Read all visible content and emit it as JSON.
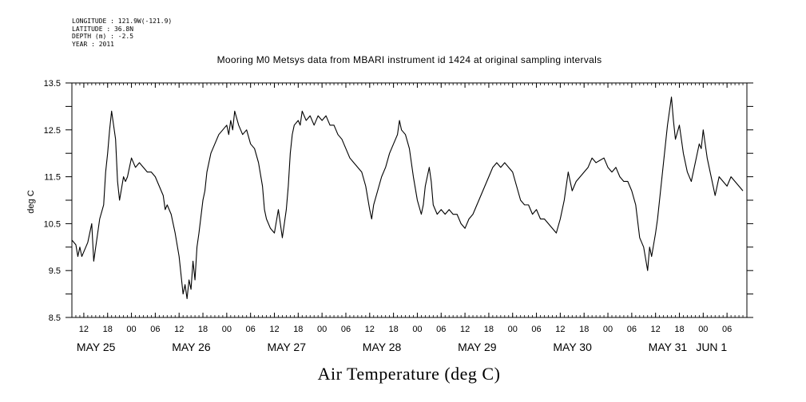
{
  "header": {
    "lines": [
      "LONGITUDE : 121.9W(-121.9)",
      "LATITUDE : 36.8N",
      "DEPTH (m) : -2.5",
      "YEAR : 2011"
    ]
  },
  "chart_data": {
    "type": "line",
    "title": "Mooring M0 Metsys data from MBARI instrument id 1424 at original sampling intervals",
    "xlabel": "Air Temperature (deg C)",
    "ylabel": "deg C",
    "ylim": [
      8.5,
      13.5
    ],
    "yticks": [
      "8.5",
      "9.5",
      "10.5",
      "11.5",
      "12.5",
      "13.5"
    ],
    "x_unit": "hours since May 25 00:00",
    "xlim": [
      9,
      179
    ],
    "hour_ticks": [
      {
        "h": 12,
        "label": "12"
      },
      {
        "h": 18,
        "label": "18"
      },
      {
        "h": 24,
        "label": "00"
      },
      {
        "h": 30,
        "label": "06"
      },
      {
        "h": 36,
        "label": "12"
      },
      {
        "h": 42,
        "label": "18"
      },
      {
        "h": 48,
        "label": "00"
      },
      {
        "h": 54,
        "label": "06"
      },
      {
        "h": 60,
        "label": "12"
      },
      {
        "h": 66,
        "label": "18"
      },
      {
        "h": 72,
        "label": "00"
      },
      {
        "h": 78,
        "label": "06"
      },
      {
        "h": 84,
        "label": "12"
      },
      {
        "h": 90,
        "label": "18"
      },
      {
        "h": 96,
        "label": "00"
      },
      {
        "h": 102,
        "label": "06"
      },
      {
        "h": 108,
        "label": "12"
      },
      {
        "h": 114,
        "label": "18"
      },
      {
        "h": 120,
        "label": "00"
      },
      {
        "h": 126,
        "label": "06"
      },
      {
        "h": 132,
        "label": "12"
      },
      {
        "h": 138,
        "label": "18"
      },
      {
        "h": 144,
        "label": "00"
      },
      {
        "h": 150,
        "label": "06"
      },
      {
        "h": 156,
        "label": "12"
      },
      {
        "h": 162,
        "label": "18"
      },
      {
        "h": 168,
        "label": "00"
      },
      {
        "h": 174,
        "label": "06"
      }
    ],
    "day_labels": [
      {
        "h": 12,
        "label": "MAY 25"
      },
      {
        "h": 36,
        "label": "MAY 26"
      },
      {
        "h": 60,
        "label": "MAY 27"
      },
      {
        "h": 84,
        "label": "MAY 28"
      },
      {
        "h": 108,
        "label": "MAY 29"
      },
      {
        "h": 132,
        "label": "MAY 30"
      },
      {
        "h": 156,
        "label": "MAY 31"
      },
      {
        "h": 168,
        "label": "JUN  1"
      }
    ],
    "series": [
      {
        "x": [
          9,
          10,
          10.5,
          11,
          11.5,
          12,
          13,
          14,
          14.5,
          15,
          16,
          17,
          17.5,
          18,
          18.5,
          19,
          20,
          20.5,
          21,
          22,
          22.5,
          23,
          24,
          25,
          26,
          27,
          28,
          29,
          30,
          31,
          32,
          32.5,
          33,
          34,
          35,
          36,
          37,
          37.5,
          38,
          38.5,
          39,
          39.5,
          40,
          40.5,
          41,
          42,
          42.5,
          43,
          44,
          45,
          46,
          47,
          48,
          48.5,
          49,
          49.5,
          50,
          51,
          52,
          53,
          54,
          55,
          56,
          57,
          57.5,
          58,
          59,
          60,
          61,
          62,
          63,
          63.5,
          64,
          64.5,
          65,
          66,
          66.5,
          67,
          68,
          69,
          70,
          71,
          72,
          73,
          74,
          75,
          76,
          77,
          78,
          79,
          80,
          81,
          82,
          83,
          84,
          84.5,
          85,
          86,
          87,
          88,
          89,
          90,
          91,
          91.5,
          92,
          93,
          94,
          95,
          96,
          97,
          97.5,
          98,
          99,
          99.5,
          100,
          101,
          102,
          103,
          104,
          105,
          106,
          107,
          108,
          109,
          110,
          111,
          112,
          113,
          114,
          115,
          116,
          117,
          118,
          119,
          120,
          121,
          122,
          123,
          124,
          125,
          126,
          127,
          128,
          129,
          130,
          131,
          132,
          133,
          134,
          135,
          136,
          137,
          138,
          139,
          140,
          141,
          142,
          143,
          144,
          145,
          146,
          147,
          148,
          149,
          150,
          151,
          152,
          153,
          154,
          154.5,
          155,
          156,
          156.5,
          157,
          158,
          159,
          160,
          160.5,
          161,
          162,
          163,
          164,
          165,
          166,
          167,
          167.5,
          168,
          169,
          170,
          171,
          172,
          173,
          174,
          175,
          176,
          177,
          178
        ],
        "y": [
          10.15,
          10.05,
          9.8,
          10.0,
          9.8,
          9.9,
          10.1,
          10.5,
          9.7,
          10.0,
          10.6,
          10.9,
          11.6,
          12.0,
          12.5,
          12.9,
          12.3,
          11.4,
          11.0,
          11.5,
          11.4,
          11.5,
          11.9,
          11.7,
          11.8,
          11.7,
          11.6,
          11.6,
          11.5,
          11.3,
          11.1,
          10.8,
          10.9,
          10.7,
          10.3,
          9.8,
          9.0,
          9.2,
          8.9,
          9.3,
          9.1,
          9.7,
          9.3,
          10.0,
          10.3,
          11.0,
          11.2,
          11.6,
          12.0,
          12.2,
          12.4,
          12.5,
          12.6,
          12.4,
          12.7,
          12.5,
          12.9,
          12.6,
          12.4,
          12.5,
          12.2,
          12.1,
          11.8,
          11.3,
          10.8,
          10.6,
          10.4,
          10.3,
          10.8,
          10.2,
          10.8,
          11.3,
          12.0,
          12.4,
          12.6,
          12.7,
          12.6,
          12.9,
          12.7,
          12.8,
          12.6,
          12.8,
          12.7,
          12.8,
          12.6,
          12.6,
          12.4,
          12.3,
          12.1,
          11.9,
          11.8,
          11.7,
          11.6,
          11.3,
          10.8,
          10.6,
          10.9,
          11.2,
          11.5,
          11.7,
          12.0,
          12.2,
          12.4,
          12.7,
          12.5,
          12.4,
          12.1,
          11.5,
          11.0,
          10.7,
          10.9,
          11.3,
          11.7,
          11.4,
          10.9,
          10.7,
          10.8,
          10.7,
          10.8,
          10.7,
          10.7,
          10.5,
          10.4,
          10.6,
          10.7,
          10.9,
          11.1,
          11.3,
          11.5,
          11.7,
          11.8,
          11.7,
          11.8,
          11.7,
          11.6,
          11.3,
          11.0,
          10.9,
          10.9,
          10.7,
          10.8,
          10.6,
          10.6,
          10.5,
          10.4,
          10.3,
          10.6,
          11.0,
          11.6,
          11.2,
          11.4,
          11.5,
          11.6,
          11.7,
          11.9,
          11.8,
          11.85,
          11.9,
          11.7,
          11.6,
          11.7,
          11.5,
          11.4,
          11.4,
          11.2,
          10.9,
          10.2,
          10.0,
          9.5,
          10.0,
          9.8,
          10.3,
          10.6,
          11.0,
          11.8,
          12.6,
          13.2,
          12.7,
          12.3,
          12.6,
          12.0,
          11.6,
          11.4,
          11.8,
          12.2,
          12.1,
          12.5,
          11.9,
          11.5,
          11.1,
          11.5,
          11.4,
          11.3,
          11.5,
          11.4,
          11.3,
          11.2
        ]
      }
    ]
  }
}
